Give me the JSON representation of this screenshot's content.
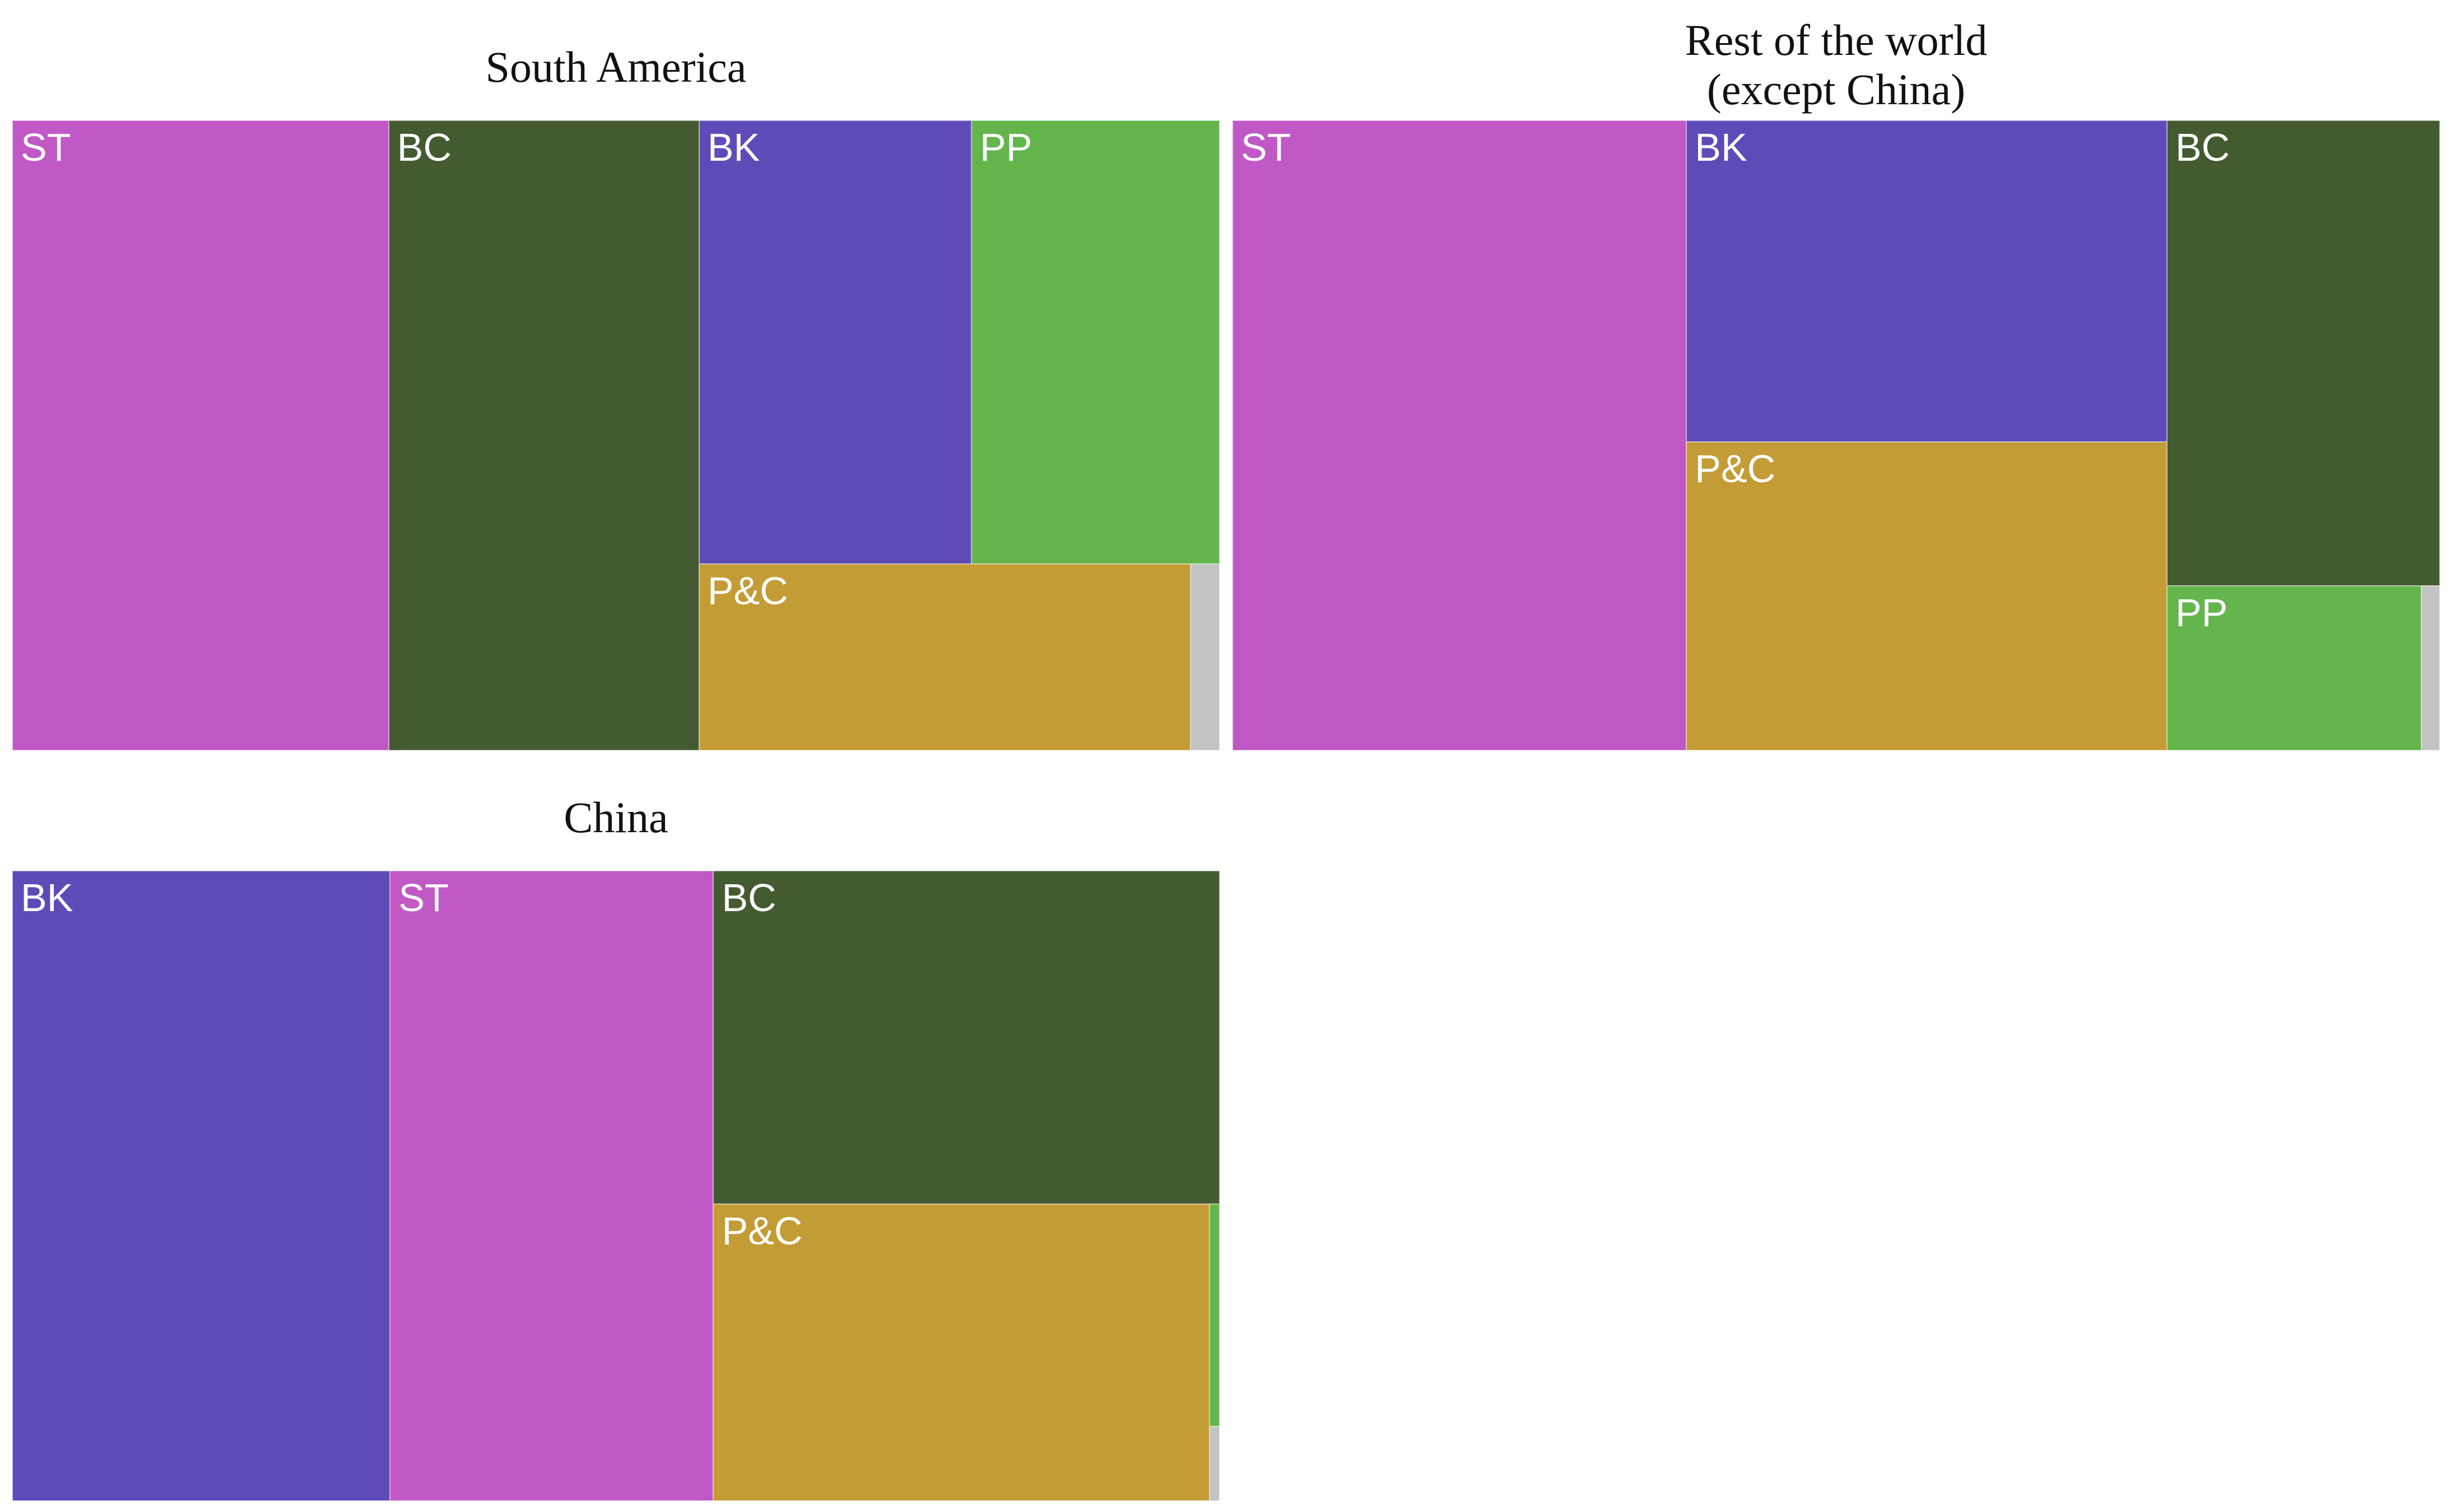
{
  "chart_data": [
    {
      "type": "treemap",
      "title": "South America",
      "tiles": [
        {
          "label": "ST",
          "value": 30.8,
          "color": "#C058C5"
        },
        {
          "label": "BC",
          "value": 25.4,
          "color": "#445A31"
        },
        {
          "label": "BK",
          "value": 15.7,
          "color": "#5F4BB8"
        },
        {
          "label": "PP",
          "value": 14.3,
          "color": "#63B54C"
        },
        {
          "label": "P&C",
          "value": 11.9,
          "color": "#C49C35"
        },
        {
          "label": "",
          "value": 0.7,
          "color": "#C3C3C3"
        }
      ]
    },
    {
      "type": "treemap",
      "title": "Rest of the world\n(except China)",
      "tiles": [
        {
          "label": "ST",
          "value": 37.6,
          "color": "#C058C5"
        },
        {
          "label": "BK",
          "value": 20.3,
          "color": "#5F4BB8"
        },
        {
          "label": "P&C",
          "value": 19.5,
          "color": "#C49C35"
        },
        {
          "label": "BC",
          "value": 16.7,
          "color": "#445A31"
        },
        {
          "label": "PP",
          "value": 5.5,
          "color": "#63B54C"
        },
        {
          "label": "",
          "value": 0.4,
          "color": "#C3C3C3"
        }
      ]
    },
    {
      "type": "treemap",
      "title": "China",
      "tiles": [
        {
          "label": "BK",
          "value": 31.2,
          "color": "#5F4BB8"
        },
        {
          "label": "ST",
          "value": 26.7,
          "color": "#C058C5"
        },
        {
          "label": "BC",
          "value": 22.1,
          "color": "#445A31"
        },
        {
          "label": "P&C",
          "value": 19.3,
          "color": "#C49C35"
        },
        {
          "label": "",
          "value": 0.3,
          "color": "#63B54C"
        },
        {
          "label": "",
          "value": 0.1,
          "color": "#C3C3C3"
        }
      ]
    }
  ]
}
